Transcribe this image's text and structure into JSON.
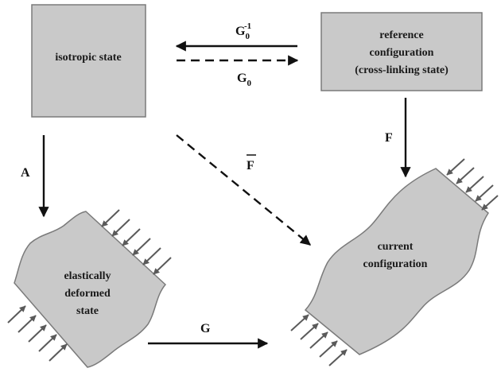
{
  "nodes": {
    "isotropic": {
      "label": "isotropic state"
    },
    "reference": {
      "lines": [
        "reference",
        "configuration",
        "(cross-linking state)"
      ]
    },
    "elastic": {
      "lines": [
        "elastically",
        "deformed",
        "state"
      ]
    },
    "current": {
      "lines": [
        "current",
        "configuration"
      ]
    }
  },
  "edges": {
    "g0_inverse": {
      "base": "G",
      "sub": "0",
      "sup": "-1"
    },
    "g0": {
      "base": "G",
      "sub": "0"
    },
    "f": {
      "label": "F"
    },
    "fbar": {
      "label": "F"
    },
    "a": {
      "label": "A"
    },
    "g": {
      "label": "G"
    }
  },
  "colors": {
    "box_fill": "#c9c9c9",
    "box_stroke": "#7a7a7a",
    "arrow": "#111111",
    "load_arrow": "#5a5a5a"
  }
}
